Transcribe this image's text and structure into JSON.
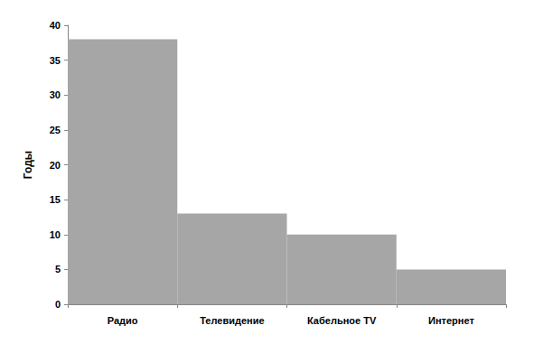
{
  "chart_data": {
    "type": "bar",
    "categories": [
      "Радио",
      "Телевидение",
      "Кабельное TV",
      "Интернет"
    ],
    "values": [
      38,
      13,
      10,
      5
    ],
    "color": "#a6a6a6",
    "y_label": "Годы",
    "ylim": [
      0,
      40
    ],
    "yticks": [
      0,
      5,
      10,
      15,
      20,
      25,
      30,
      35,
      40
    ],
    "grid": false
  }
}
